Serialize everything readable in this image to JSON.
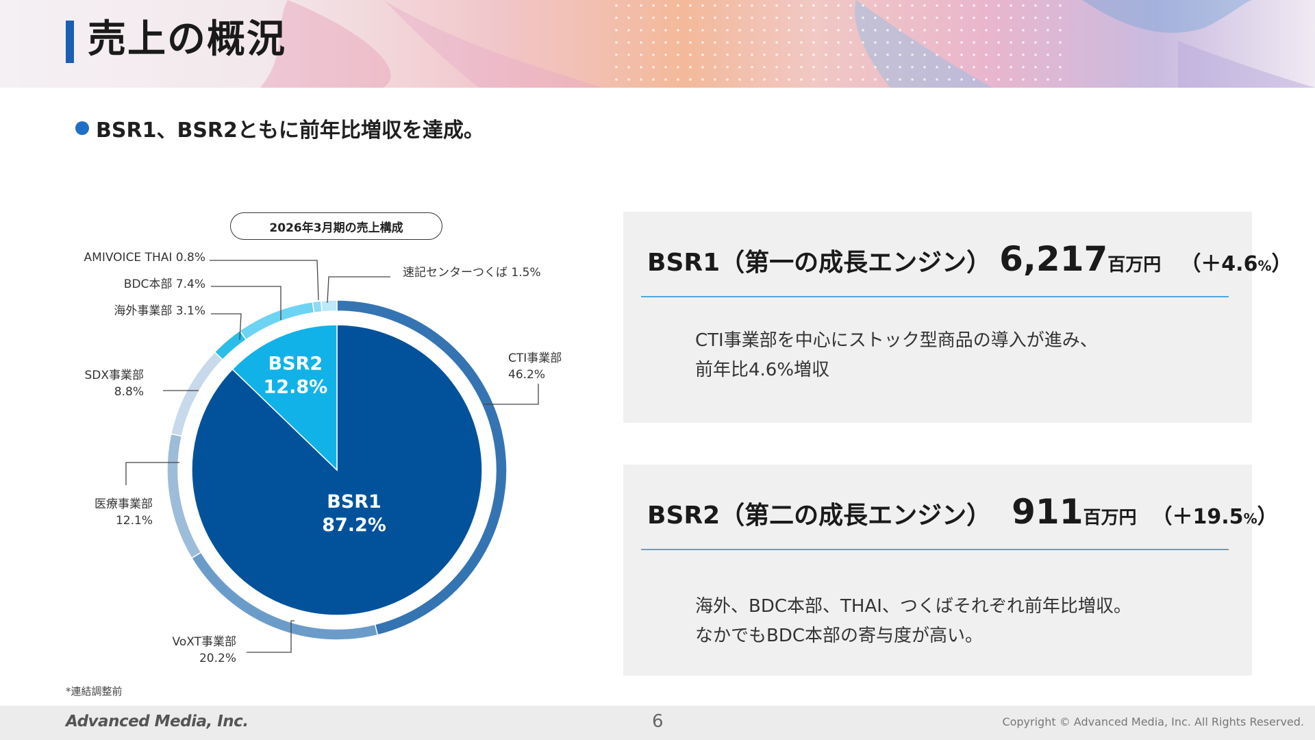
{
  "title": "売上の概況",
  "bullet": "BSR1、BSR2ともに前年比増収を達成。",
  "chart_title": "2026年3月期の売上構成",
  "colors": {
    "title_accent": "#1a5fb4",
    "bsr1_inner": "#02529b",
    "bsr2_inner": "#11b2e8",
    "rule": "#4fa6dd"
  },
  "chart_data": [
    {
      "type": "pie",
      "ring": "inner",
      "title": "2026年3月期の売上構成",
      "slices": [
        {
          "label": "BSR2",
          "value": 12.8,
          "pct_text": "12.8%",
          "color": "#11b2e8"
        },
        {
          "label": "BSR1",
          "value": 87.2,
          "pct_text": "87.2%",
          "color": "#02529b"
        }
      ]
    },
    {
      "type": "pie",
      "ring": "outer",
      "slices": [
        {
          "name": "CTI事業部",
          "value": 46.2,
          "pct_text": "46.2%",
          "group": "BSR1",
          "color": "#3574b2"
        },
        {
          "name": "VoXT事業部",
          "value": 20.2,
          "pct_text": "20.2%",
          "group": "BSR1",
          "color": "#6b9cc9"
        },
        {
          "name": "医療事業部",
          "value": 12.1,
          "pct_text": "12.1%",
          "group": "BSR1",
          "color": "#9dbcd9"
        },
        {
          "name": "SDX事業部",
          "value": 8.8,
          "pct_text": "8.8%",
          "group": "BSR1",
          "color": "#c7d9ea"
        },
        {
          "name": "海外事業部",
          "value": 3.1,
          "pct_text": "3.1%",
          "group": "BSR2",
          "color": "#2bbde9"
        },
        {
          "name": "BDC本部",
          "value": 7.4,
          "pct_text": "7.4%",
          "group": "BSR2",
          "color": "#6cd3f2"
        },
        {
          "name": "AMIVOICE THAI",
          "value": 0.8,
          "pct_text": "0.8%",
          "group": "BSR2",
          "color": "#8cdcf4"
        },
        {
          "name": "速記センターつくば",
          "value": 1.5,
          "pct_text": "1.5%",
          "group": "BSR2",
          "color": "#bde9f8"
        }
      ]
    }
  ],
  "panels": [
    {
      "segment": "BSR1（第一の成長エンジン）",
      "amount": "6,217",
      "unit": "百万円",
      "growth_open": "（＋4.6",
      "growth_pct": "%",
      "growth_close": "）",
      "desc1": "CTI事業部を中心にストック型商品の導入が進み、",
      "desc2": "前年比4.6%増収"
    },
    {
      "segment": "BSR2（第二の成長エンジン）",
      "amount": "911",
      "unit": "百万円",
      "growth_open": "（＋19.5",
      "growth_pct": "%",
      "growth_close": "）",
      "desc1": "海外、BDC本部、THAI、つくばそれぞれ前年比増収。",
      "desc2": "なかでもBDC本部の寄与度が高い。"
    }
  ],
  "footnote": "*連結調整前",
  "footer": {
    "logo": "Advanced Media, Inc.",
    "page": "6",
    "copyright": "Copyright © Advanced Media, Inc. All Rights Reserved."
  }
}
